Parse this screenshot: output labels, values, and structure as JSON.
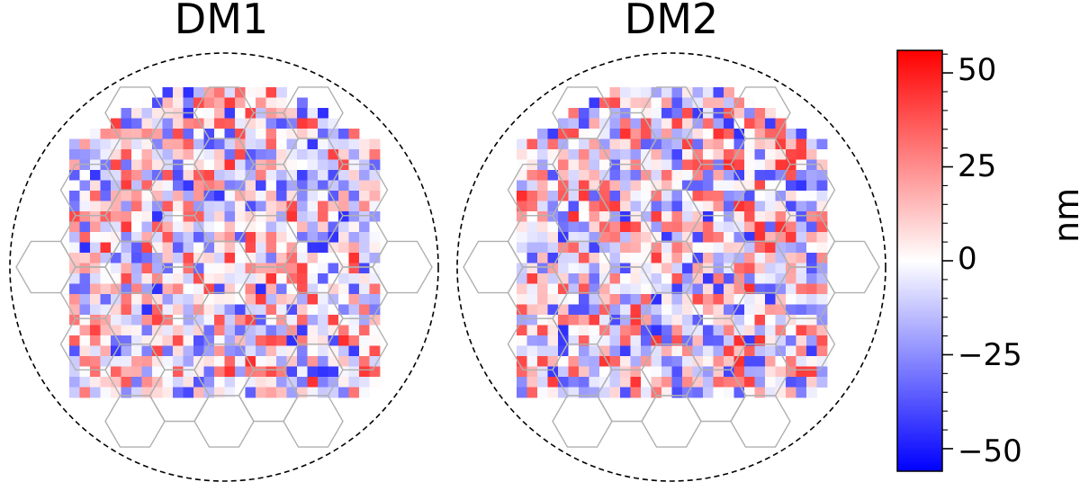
{
  "chart_data": [
    {
      "type": "heatmap",
      "title": "DM1",
      "seed": 1,
      "value_range": [
        -56,
        56
      ],
      "aperture": "circular",
      "segment_overlay": "hexagonal"
    },
    {
      "type": "heatmap",
      "title": "DM2",
      "seed": 7,
      "value_range": [
        -56,
        56
      ],
      "aperture": "circular",
      "segment_overlay": "hexagonal"
    }
  ],
  "colorbar": {
    "label": "nm",
    "colormap": "bwr",
    "min": -56,
    "max": 56,
    "ticks": [
      {
        "value": 50,
        "label": "50"
      },
      {
        "value": 25,
        "label": "25"
      },
      {
        "value": 0,
        "label": "0"
      },
      {
        "value": -25,
        "label": "−25"
      },
      {
        "value": -50,
        "label": "−50"
      }
    ],
    "colors": {
      "low": "#0000ff",
      "mid": "#ffffff",
      "high": "#ff0000"
    }
  }
}
